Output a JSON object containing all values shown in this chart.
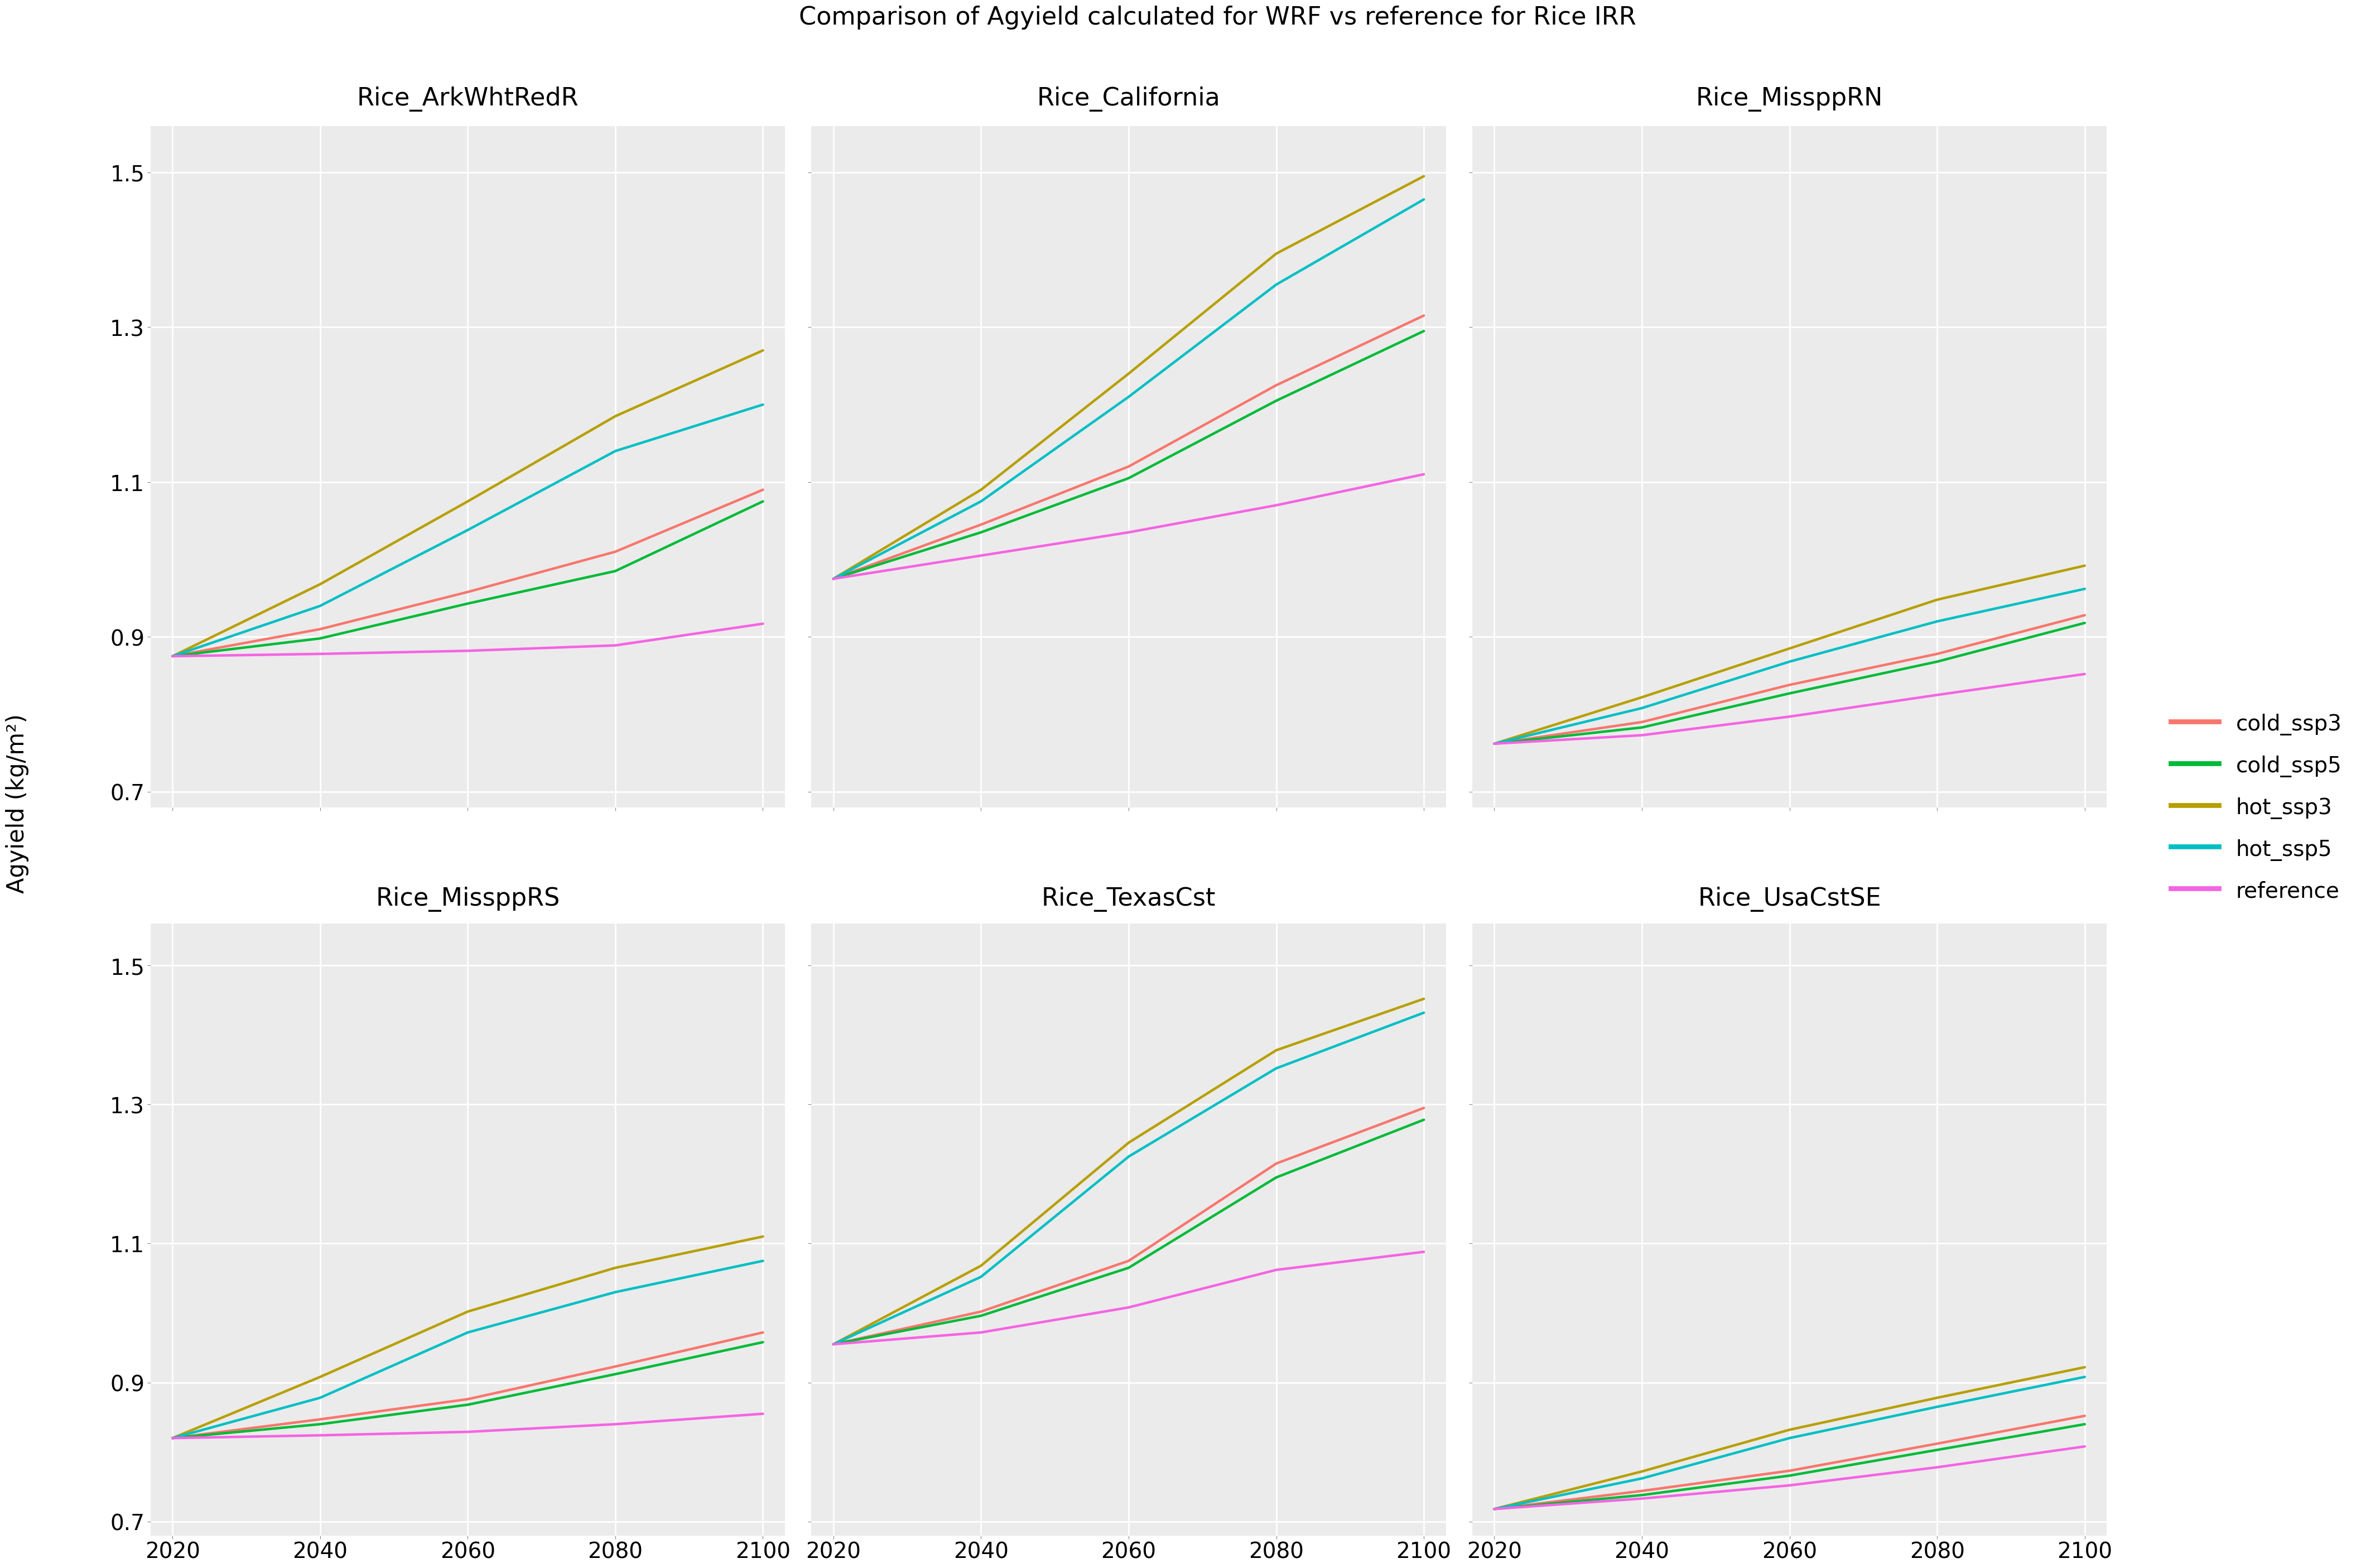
{
  "title": "Comparison of Agyield calculated for WRF vs reference for Rice IRR",
  "ylabel": "Agyield (kg/m²)",
  "x_values": [
    2020,
    2040,
    2060,
    2080,
    2100
  ],
  "subplots": [
    {
      "title": "Rice_ArkWhtRedR",
      "series": {
        "cold_ssp3": [
          0.875,
          0.91,
          0.958,
          1.01,
          1.09
        ],
        "cold_ssp5": [
          0.875,
          0.898,
          0.943,
          0.985,
          1.075
        ],
        "hot_ssp3": [
          0.875,
          0.968,
          1.075,
          1.185,
          1.27
        ],
        "hot_ssp5": [
          0.875,
          0.94,
          1.038,
          1.14,
          1.2
        ],
        "reference": [
          0.875,
          0.878,
          0.882,
          0.889,
          0.917
        ]
      }
    },
    {
      "title": "Rice_California",
      "series": {
        "cold_ssp3": [
          0.975,
          1.045,
          1.12,
          1.225,
          1.315
        ],
        "cold_ssp5": [
          0.975,
          1.035,
          1.105,
          1.205,
          1.295
        ],
        "hot_ssp3": [
          0.975,
          1.09,
          1.24,
          1.395,
          1.495
        ],
        "hot_ssp5": [
          0.975,
          1.075,
          1.21,
          1.355,
          1.465
        ],
        "reference": [
          0.975,
          1.005,
          1.035,
          1.07,
          1.11
        ]
      }
    },
    {
      "title": "Rice_MissppRN",
      "series": {
        "cold_ssp3": [
          0.762,
          0.79,
          0.838,
          0.878,
          0.928
        ],
        "cold_ssp5": [
          0.762,
          0.783,
          0.827,
          0.868,
          0.918
        ],
        "hot_ssp3": [
          0.762,
          0.822,
          0.885,
          0.948,
          0.992
        ],
        "hot_ssp5": [
          0.762,
          0.808,
          0.868,
          0.92,
          0.962
        ],
        "reference": [
          0.762,
          0.773,
          0.797,
          0.825,
          0.852
        ]
      }
    },
    {
      "title": "Rice_MissppRS",
      "series": {
        "cold_ssp3": [
          0.82,
          0.847,
          0.876,
          0.923,
          0.972
        ],
        "cold_ssp5": [
          0.82,
          0.84,
          0.868,
          0.912,
          0.958
        ],
        "hot_ssp3": [
          0.82,
          0.908,
          1.002,
          1.065,
          1.11
        ],
        "hot_ssp5": [
          0.82,
          0.878,
          0.972,
          1.03,
          1.075
        ],
        "reference": [
          0.82,
          0.824,
          0.829,
          0.84,
          0.855
        ]
      }
    },
    {
      "title": "Rice_TexasCst",
      "series": {
        "cold_ssp3": [
          0.955,
          1.002,
          1.075,
          1.215,
          1.295
        ],
        "cold_ssp5": [
          0.955,
          0.996,
          1.065,
          1.195,
          1.278
        ],
        "hot_ssp3": [
          0.955,
          1.068,
          1.245,
          1.378,
          1.452
        ],
        "hot_ssp5": [
          0.955,
          1.052,
          1.225,
          1.352,
          1.432
        ],
        "reference": [
          0.955,
          0.972,
          1.008,
          1.062,
          1.088
        ]
      }
    },
    {
      "title": "Rice_UsaCstSE",
      "series": {
        "cold_ssp3": [
          0.718,
          0.744,
          0.773,
          0.812,
          0.852
        ],
        "cold_ssp5": [
          0.718,
          0.738,
          0.766,
          0.803,
          0.84
        ],
        "hot_ssp3": [
          0.718,
          0.772,
          0.832,
          0.878,
          0.922
        ],
        "hot_ssp5": [
          0.718,
          0.762,
          0.82,
          0.865,
          0.908
        ],
        "reference": [
          0.718,
          0.733,
          0.752,
          0.778,
          0.808
        ]
      }
    }
  ],
  "series_colors": {
    "cold_ssp3": "#F8766D",
    "cold_ssp5": "#00BA38",
    "hot_ssp3": "#B79F00",
    "hot_ssp5": "#00BFC4",
    "reference": "#F564E3"
  },
  "series_labels": {
    "cold_ssp3": "cold_ssp3",
    "cold_ssp5": "cold_ssp5",
    "hot_ssp3": "hot_ssp3",
    "hot_ssp5": "hot_ssp5",
    "reference": "reference"
  },
  "ylim": [
    0.68,
    1.56
  ],
  "yticks": [
    0.7,
    0.9,
    1.1,
    1.3,
    1.5
  ],
  "xticks": [
    2020,
    2040,
    2060,
    2080,
    2100
  ],
  "panel_bg": "#EBEBEB",
  "outer_bg": "#FFFFFF",
  "grid_color": "#FFFFFF",
  "strip_bg": "#D3D3D3",
  "line_width": 1.8
}
